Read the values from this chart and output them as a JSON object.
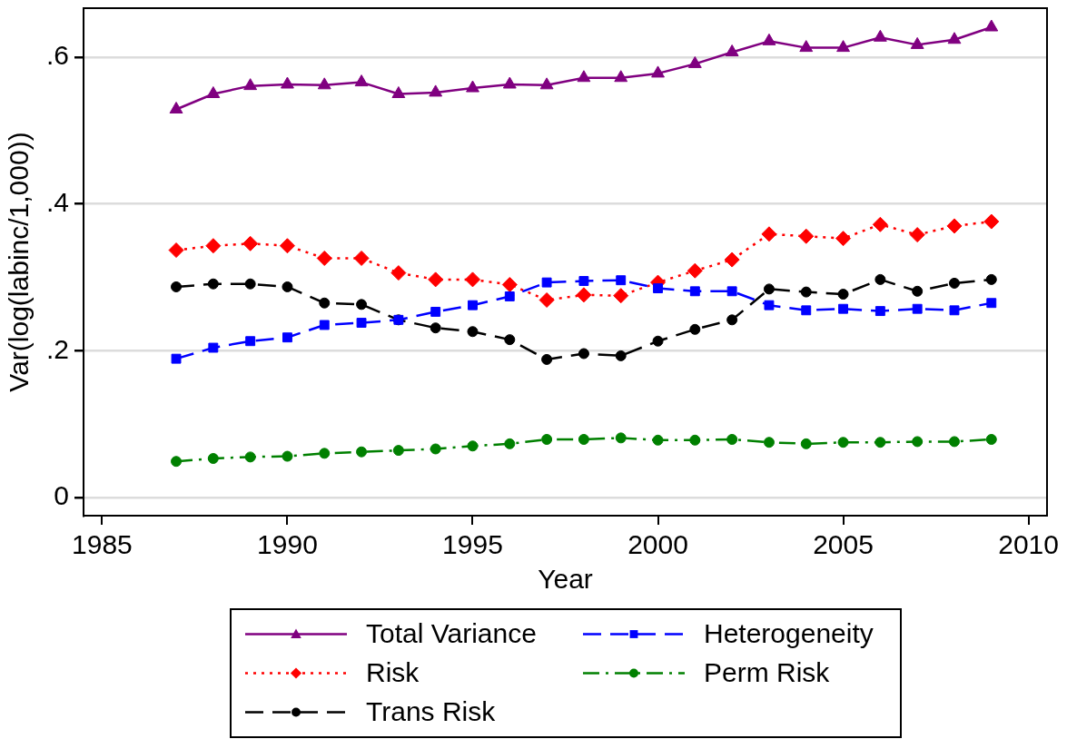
{
  "chart_data": {
    "type": "line",
    "xlabel": "Year",
    "ylabel": "Var(log(labinc/1,000))",
    "x": [
      1987,
      1988,
      1989,
      1990,
      1991,
      1992,
      1993,
      1994,
      1995,
      1996,
      1997,
      1998,
      1999,
      2000,
      2001,
      2002,
      2003,
      2004,
      2005,
      2006,
      2007,
      2008,
      2009
    ],
    "series": [
      {
        "name": "Total Variance",
        "color": "#800080",
        "marker": "triangle",
        "line_style": "solid",
        "values": [
          0.529,
          0.55,
          0.561,
          0.563,
          0.562,
          0.566,
          0.55,
          0.552,
          0.558,
          0.563,
          0.562,
          0.572,
          0.572,
          0.578,
          0.591,
          0.607,
          0.622,
          0.613,
          0.613,
          0.627,
          0.617,
          0.624,
          0.641
        ]
      },
      {
        "name": "Heterogeneity",
        "color": "#0000ff",
        "marker": "square",
        "line_style": "dashed",
        "values": [
          0.189,
          0.204,
          0.213,
          0.218,
          0.235,
          0.238,
          0.242,
          0.253,
          0.262,
          0.274,
          0.293,
          0.295,
          0.296,
          0.285,
          0.281,
          0.281,
          0.262,
          0.255,
          0.257,
          0.254,
          0.257,
          0.255,
          0.265
        ]
      },
      {
        "name": "Risk",
        "color": "#ff0000",
        "marker": "diamond",
        "line_style": "dotted",
        "values": [
          0.337,
          0.343,
          0.346,
          0.343,
          0.326,
          0.326,
          0.306,
          0.297,
          0.297,
          0.29,
          0.269,
          0.276,
          0.275,
          0.293,
          0.309,
          0.324,
          0.359,
          0.356,
          0.353,
          0.372,
          0.358,
          0.37,
          0.376
        ]
      },
      {
        "name": "Perm Risk",
        "color": "#008000",
        "marker": "circle",
        "line_style": "dashdot",
        "values": [
          0.049,
          0.053,
          0.055,
          0.056,
          0.06,
          0.062,
          0.064,
          0.066,
          0.07,
          0.073,
          0.079,
          0.079,
          0.081,
          0.078,
          0.078,
          0.079,
          0.075,
          0.073,
          0.075,
          0.075,
          0.076,
          0.076,
          0.079
        ]
      },
      {
        "name": "Trans Risk",
        "color": "#000000",
        "marker": "circle",
        "line_style": "dashed",
        "values": [
          0.287,
          0.291,
          0.291,
          0.287,
          0.265,
          0.263,
          0.242,
          0.231,
          0.226,
          0.215,
          0.188,
          0.196,
          0.193,
          0.213,
          0.229,
          0.242,
          0.284,
          0.28,
          0.277,
          0.297,
          0.281,
          0.292,
          0.297
        ]
      }
    ],
    "xlim": [
      1984.5,
      2010.5
    ],
    "xticks": [
      1985,
      1990,
      1995,
      2000,
      2005,
      2010
    ],
    "ylim": [
      -0.025,
      0.667
    ],
    "yticks": [
      {
        "value": 0,
        "label": "0"
      },
      {
        "value": 0.2,
        "label": ".2"
      },
      {
        "value": 0.4,
        "label": ".4"
      },
      {
        "value": 0.6,
        "label": ".6"
      }
    ],
    "grid": "y",
    "legend": "bottom"
  }
}
